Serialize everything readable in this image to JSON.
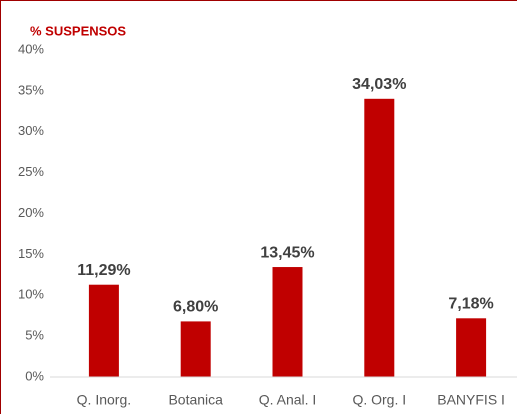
{
  "chart_data": {
    "type": "bar",
    "title": "% SUSPENSOS",
    "categories": [
      "Q. Inorg.",
      "Botanica",
      "Q. Anal. I",
      "Q. Org. I",
      "BANYFIS I"
    ],
    "values": [
      11.29,
      6.8,
      13.45,
      34.03,
      7.18
    ],
    "value_labels": [
      "11,29%",
      "6,80%",
      "13,45%",
      "34,03%",
      "7,18%"
    ],
    "color": "#c00000",
    "ylim": [
      0,
      40
    ],
    "yticks": [
      {
        "value": 0,
        "label": "0%"
      },
      {
        "value": 5,
        "label": "5%"
      },
      {
        "value": 10,
        "label": "10%"
      },
      {
        "value": 15,
        "label": "15%"
      },
      {
        "value": 20,
        "label": "20%"
      },
      {
        "value": 25,
        "label": "25%"
      },
      {
        "value": 30,
        "label": "30%"
      },
      {
        "value": 35,
        "label": "35%"
      },
      {
        "value": 40,
        "label": "40%"
      }
    ],
    "grid": false
  }
}
